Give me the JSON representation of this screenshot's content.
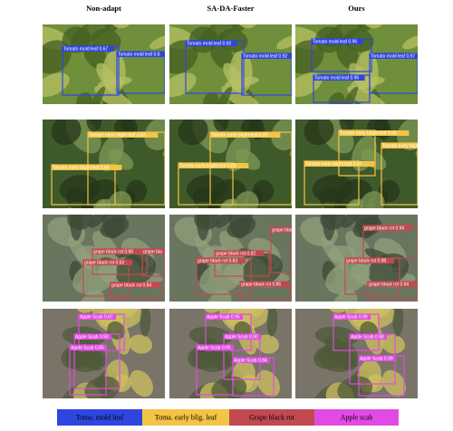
{
  "columns": [
    "Non-adapt",
    "SA-DA-Faster",
    "Ours"
  ],
  "rows": [
    {
      "panels": [
        {
          "boxes": [
            "Tomato mold leaf 0.67",
            "Tomato mold leaf 0.8"
          ]
        },
        {
          "boxes": [
            "Tomato mold leaf 0.93",
            "Tomato mold leaf 0.92"
          ]
        },
        {
          "boxes": [
            "Tomato mold leaf 0.96",
            "Tomato mold leaf 0.97",
            "Tomato mold leaf 0.96"
          ]
        }
      ]
    },
    {
      "panels": [
        {
          "boxes": [
            "Tomato early blight leaf 0.83",
            "Tomato early blight leaf 0.84"
          ]
        },
        {
          "boxes": [
            "Tomato early blight leaf 0.80",
            "Tomato early blight leaf 0.83"
          ]
        },
        {
          "boxes": [
            "Tomato early blight leaf 0.90",
            "Tomato early blight leaf 0.87",
            "Tomato early blight leaf"
          ]
        }
      ]
    },
    {
      "panels": [
        {
          "boxes": [
            "grape black rot 0.80",
            "grape black rot 0.63",
            "grape black rot 0.84",
            "grape bla"
          ]
        },
        {
          "boxes": [
            "grape black rot 0.92",
            "grape black rot 0.83",
            "grape black rot 0.85",
            "grape blac"
          ]
        },
        {
          "boxes": [
            "grape black rot 0.94",
            "grape black rot 0.98",
            "grape black rot 0.94"
          ]
        }
      ]
    },
    {
      "panels": [
        {
          "boxes": [
            "Apple Scab 0.87",
            "Apple Scab 0.90",
            "Apple Scab 0.85"
          ]
        },
        {
          "boxes": [
            "Apple Scab 0.95",
            "Apple Scab 0.90",
            "Apple Scab 0.95",
            "Apple Scab 0.94"
          ]
        },
        {
          "boxes": [
            "Apple Scab 0.99",
            "Apple Scab 0.98",
            "Apple Scab 0.99"
          ]
        }
      ]
    }
  ],
  "legend": [
    {
      "label": "Toma. mold leaf",
      "color": "#2f45e0"
    },
    {
      "label": "Toma. early blig. leaf",
      "color": "#f4c445"
    },
    {
      "label": "Grape black rot",
      "color": "#c04a50"
    },
    {
      "label": "Apple scab",
      "color": "#e24ae4"
    }
  ]
}
